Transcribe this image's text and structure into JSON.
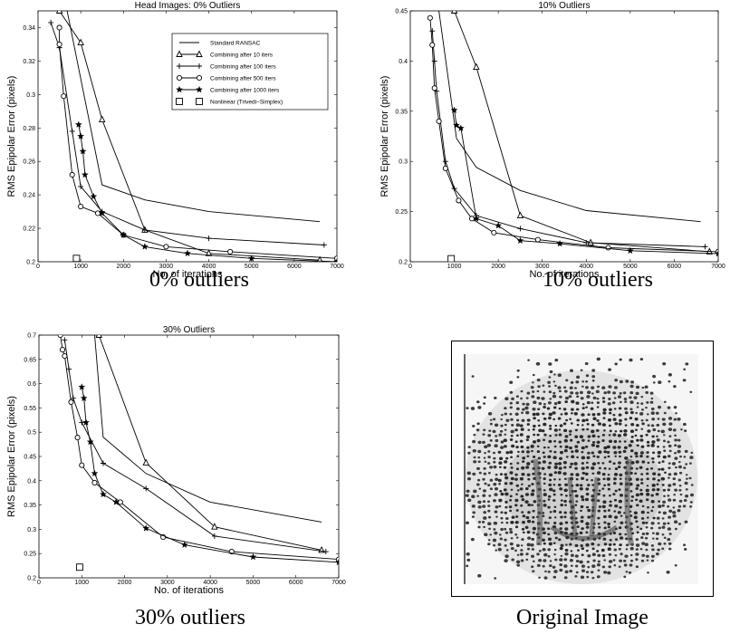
{
  "chart_data": [
    {
      "type": "line",
      "title": "Head Images: 0% Outliers",
      "xlabel": "No. of iterations",
      "ylabel": "RMS Epipolar Error (pixels)",
      "xlim": [
        0,
        7000
      ],
      "ylim": [
        0.2,
        0.35
      ],
      "xticks": [
        0,
        1000,
        2000,
        3000,
        4000,
        5000,
        6000,
        7000
      ],
      "yticks": [
        0.2,
        0.22,
        0.24,
        0.26,
        0.28,
        0.3,
        0.32,
        0.34
      ],
      "ytick_labels": [
        "0.2",
        "0.22",
        "0.24",
        "0.26",
        "0.28",
        "0.3",
        "0.32",
        "0.34"
      ],
      "grid": false,
      "legend_position": "top-right",
      "series": [
        {
          "name": "Standard RANSAC",
          "marker": "none",
          "x": [
            680,
            1500,
            2500,
            4000,
            6600
          ],
          "y": [
            0.35,
            0.246,
            0.237,
            0.23,
            0.224
          ]
        },
        {
          "name": "Combining after 10 iters",
          "marker": "triangle",
          "x": [
            500,
            1000,
            1500,
            2500,
            4000,
            6600
          ],
          "y": [
            0.35,
            0.331,
            0.285,
            0.219,
            0.205,
            0.201
          ]
        },
        {
          "name": "Combining after 100 iters",
          "marker": "plus",
          "x": [
            300,
            500,
            800,
            1000,
            1500,
            2500,
            4000,
            6700
          ],
          "y": [
            0.343,
            0.328,
            0.278,
            0.245,
            0.23,
            0.219,
            0.214,
            0.21
          ]
        },
        {
          "name": "Combining after 500 iters",
          "marker": "circle",
          "x": [
            500,
            500,
            600,
            800,
            1000,
            1400,
            2000,
            3000,
            4500,
            7000
          ],
          "y": [
            0.34,
            0.33,
            0.299,
            0.252,
            0.233,
            0.229,
            0.216,
            0.209,
            0.206,
            0.202
          ]
        },
        {
          "name": "Combining after 1000 iters",
          "marker": "star",
          "x": [
            950,
            1000,
            1050,
            1100,
            1300,
            1500,
            2000,
            2500,
            3500,
            5000,
            7000
          ],
          "y": [
            0.282,
            0.275,
            0.266,
            0.252,
            0.239,
            0.229,
            0.216,
            0.209,
            0.205,
            0.202,
            0.2
          ]
        },
        {
          "name": "Nonlinear (Trivedi−Simplex)",
          "marker": "square",
          "x": [
            900
          ],
          "y": [
            0.202
          ]
        }
      ]
    },
    {
      "type": "line",
      "title": "10% Outliers",
      "xlabel": "No. of iterations",
      "ylabel": "RMS Epipolar Error (pixels)",
      "xlim": [
        0,
        7000
      ],
      "ylim": [
        0.2,
        0.45
      ],
      "xticks": [
        0,
        1000,
        2000,
        3000,
        4000,
        5000,
        6000,
        7000
      ],
      "yticks": [
        0.2,
        0.25,
        0.3,
        0.35,
        0.4,
        0.45
      ],
      "ytick_labels": [
        "0.2",
        "0.25",
        "0.3",
        "0.35",
        "0.4",
        "0.45"
      ],
      "grid": false,
      "series": [
        {
          "marker": "none",
          "x": [
            1050,
            1500,
            2500,
            4000,
            6600
          ],
          "y": [
            0.323,
            0.294,
            0.271,
            0.251,
            0.24
          ]
        },
        {
          "marker": "none",
          "x": [
            650,
            1050
          ],
          "y": [
            0.45,
            0.323
          ]
        },
        {
          "marker": "triangle",
          "x": [
            1000,
            1500,
            2500,
            4100,
            6800
          ],
          "y": [
            0.45,
            0.394,
            0.246,
            0.219,
            0.21
          ]
        },
        {
          "marker": "plus",
          "x": [
            500,
            550,
            600,
            800,
            1000,
            1500,
            2500,
            4000,
            6700
          ],
          "y": [
            0.43,
            0.4,
            0.37,
            0.3,
            0.273,
            0.246,
            0.233,
            0.219,
            0.215
          ]
        },
        {
          "marker": "circle",
          "x": [
            450,
            500,
            550,
            650,
            800,
            1100,
            1400,
            1900,
            2900,
            4500,
            7000
          ],
          "y": [
            0.443,
            0.416,
            0.373,
            0.34,
            0.293,
            0.261,
            0.243,
            0.229,
            0.222,
            0.214,
            0.21
          ]
        },
        {
          "marker": "star",
          "x": [
            1000,
            1050,
            1150,
            1500,
            2000,
            2500,
            3400,
            5000,
            7000
          ],
          "y": [
            0.351,
            0.336,
            0.333,
            0.243,
            0.236,
            0.221,
            0.218,
            0.211,
            0.208
          ]
        },
        {
          "marker": "square",
          "x": [
            930
          ],
          "y": [
            0.203
          ]
        }
      ]
    },
    {
      "type": "line",
      "title": "30% Outliers",
      "xlabel": "No. of iterations",
      "ylabel": "RMS Epipolar Error (pixels)",
      "xlim": [
        0,
        7000
      ],
      "ylim": [
        0.2,
        0.7
      ],
      "xticks": [
        0,
        1000,
        2000,
        3000,
        4000,
        5000,
        6000,
        7000
      ],
      "yticks": [
        0.2,
        0.25,
        0.3,
        0.35,
        0.4,
        0.45,
        0.5,
        0.55,
        0.6,
        0.65,
        0.7
      ],
      "ytick_labels": [
        "0.2",
        "0.25",
        "0.3",
        "0.35",
        "0.4",
        "0.45",
        "0.5",
        "0.55",
        "0.6",
        "0.65",
        "0.7"
      ],
      "grid": false,
      "series": [
        {
          "marker": "none",
          "x": [
            1300,
            1500,
            2500,
            4000,
            6600
          ],
          "y": [
            0.7,
            0.49,
            0.415,
            0.356,
            0.315
          ]
        },
        {
          "marker": "triangle",
          "x": [
            1400,
            2500,
            4100,
            6600
          ],
          "y": [
            0.7,
            0.437,
            0.305,
            0.257
          ]
        },
        {
          "marker": "plus",
          "x": [
            600,
            700,
            800,
            1000,
            1500,
            2500,
            4100,
            6700
          ],
          "y": [
            0.69,
            0.63,
            0.57,
            0.52,
            0.436,
            0.384,
            0.286,
            0.254
          ]
        },
        {
          "marker": "circle",
          "x": [
            500,
            550,
            600,
            750,
            900,
            1000,
            1300,
            1900,
            2900,
            4500,
            7000
          ],
          "y": [
            0.7,
            0.67,
            0.657,
            0.562,
            0.489,
            0.432,
            0.396,
            0.356,
            0.284,
            0.254,
            0.238
          ]
        },
        {
          "marker": "star",
          "x": [
            1000,
            1050,
            1100,
            1200,
            1300,
            1500,
            1800,
            2500,
            3400,
            5000,
            7000
          ],
          "y": [
            0.593,
            0.57,
            0.52,
            0.48,
            0.415,
            0.372,
            0.356,
            0.302,
            0.268,
            0.243,
            0.232
          ]
        },
        {
          "marker": "square",
          "x": [
            950
          ],
          "y": [
            0.222
          ]
        }
      ]
    }
  ],
  "captions": {
    "panel1": "0% outliers",
    "panel2": "10% outliers",
    "panel3": "30% outliers",
    "panel4": "Original Image"
  }
}
